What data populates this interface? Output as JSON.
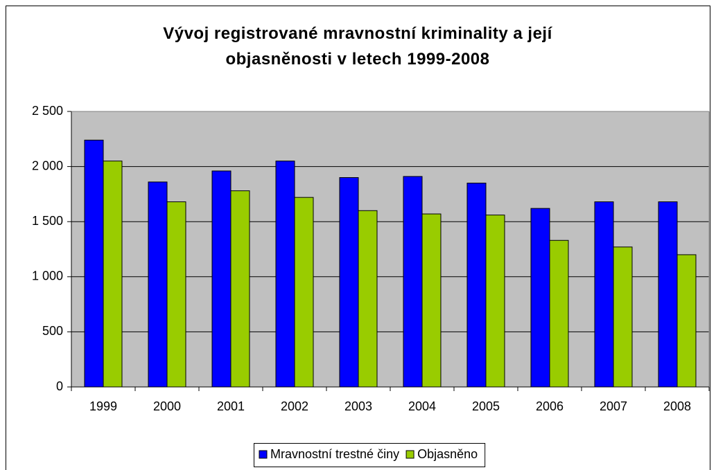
{
  "chart_data": {
    "type": "bar",
    "title": "Vývoj registrované mravnostní kriminality a její objasněnosti v letech 1999-2008",
    "categories": [
      "1999",
      "2000",
      "2001",
      "2002",
      "2003",
      "2004",
      "2005",
      "2006",
      "2007",
      "2008"
    ],
    "series": [
      {
        "name": "Mravnostní trestné činy",
        "color": "#0000ff",
        "values": [
          2240,
          1860,
          1960,
          2050,
          1900,
          1910,
          1850,
          1620,
          1680,
          1680
        ]
      },
      {
        "name": "Objasněno",
        "color": "#99cc00",
        "values": [
          2050,
          1680,
          1780,
          1720,
          1600,
          1570,
          1560,
          1330,
          1270,
          1200
        ]
      }
    ],
    "ylim": [
      0,
      2500
    ],
    "yticks": [
      0,
      500,
      {
        "value": 1000,
        "label": "1 000"
      },
      {
        "value": 1500,
        "label": "1 500"
      },
      {
        "value": 2000,
        "label": "2 000"
      },
      {
        "value": 2500,
        "label": "2 500"
      }
    ],
    "grid": true,
    "legend": "bottom"
  }
}
